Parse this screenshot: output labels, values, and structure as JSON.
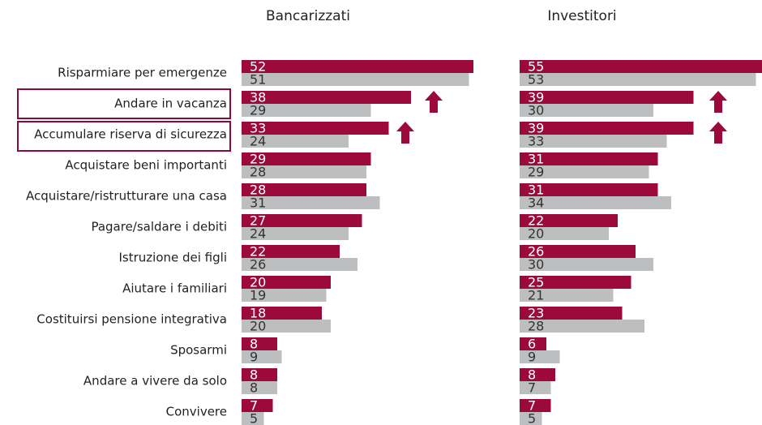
{
  "chart_data": [
    {
      "type": "hbar",
      "title": "Bancarizzati",
      "categories": [
        "Risparmiare per emergenze",
        "Andare in vacanza",
        "Accumulare riserva di sicurezza",
        "Acquistare beni importanti",
        "Acquistare/ristrutturare una casa",
        "Pagare/saldare i debiti",
        "Istruzione dei figli",
        "Aiutare i familiari",
        "Costituirsi pensione integrativa",
        "Sposarmi",
        "Andare a vivere da solo",
        "Convivere"
      ],
      "series": [
        {
          "color": "#9b0a3b",
          "values": [
            52,
            38,
            33,
            29,
            28,
            27,
            22,
            20,
            18,
            8,
            8,
            7
          ]
        },
        {
          "color": "#bcbec0",
          "values": [
            51,
            29,
            24,
            28,
            31,
            24,
            26,
            19,
            20,
            9,
            8,
            5
          ]
        }
      ]
    },
    {
      "type": "hbar",
      "title": "Investitori",
      "series": [
        {
          "color": "#9b0a3b",
          "values": [
            55,
            39,
            39,
            31,
            31,
            22,
            26,
            25,
            23,
            6,
            8,
            7
          ]
        },
        {
          "color": "#bcbec0",
          "values": [
            53,
            30,
            33,
            29,
            34,
            20,
            30,
            21,
            28,
            9,
            7,
            5
          ]
        }
      ]
    }
  ]
}
